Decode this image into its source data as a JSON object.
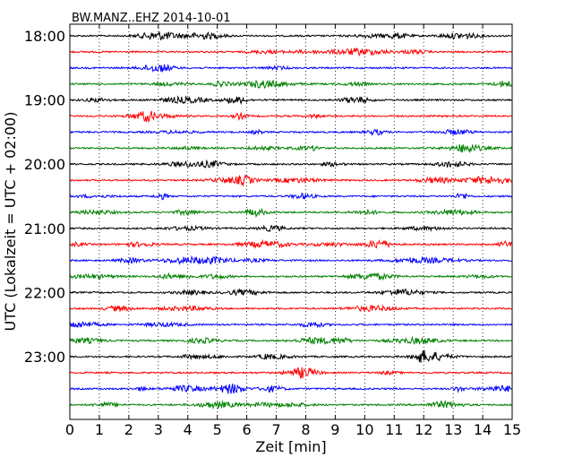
{
  "chart_data": {
    "type": "line",
    "title": "BW.MANZ..EHZ 2014-10-01",
    "xlabel": "Zeit  [min]",
    "ylabel": "UTC (Lokalzeit = UTC + 02:00)",
    "xlim": [
      0,
      15
    ],
    "x_ticks": [
      "0",
      "1",
      "2",
      "3",
      "4",
      "5",
      "6",
      "7",
      "8",
      "9",
      "10",
      "11",
      "12",
      "13",
      "14",
      "15"
    ],
    "y_tick_labels": [
      "18:00",
      "19:00",
      "20:00",
      "21:00",
      "22:00",
      "23:00"
    ],
    "y_tick_row_index": [
      0,
      4,
      8,
      12,
      16,
      20
    ],
    "grid": "vertical dotted",
    "row_start_times": [
      "18:00",
      "18:15",
      "18:30",
      "18:45",
      "19:00",
      "19:15",
      "19:30",
      "19:45",
      "20:00",
      "20:15",
      "20:30",
      "20:45",
      "21:00",
      "21:15",
      "21:30",
      "21:45",
      "22:00",
      "22:15",
      "22:30",
      "22:45",
      "23:00",
      "23:15",
      "23:30",
      "23:45"
    ],
    "color_cycle": [
      "#000000",
      "#ff0000",
      "#0000ff",
      "#008000"
    ]
  }
}
